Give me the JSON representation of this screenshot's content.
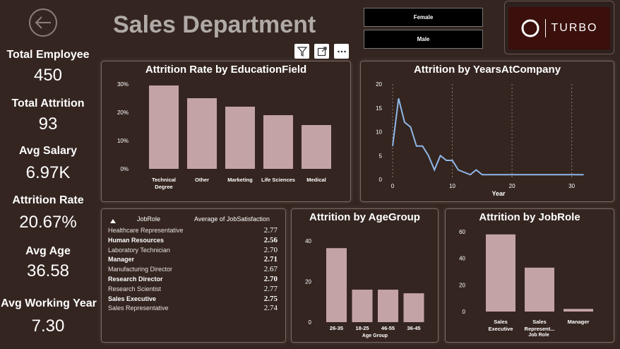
{
  "header": {
    "title": "Sales Department",
    "logo_text": "TURBO",
    "gender_slicer": [
      "Female",
      "Male"
    ]
  },
  "kpis": [
    {
      "label": "Total Employee",
      "value": "450"
    },
    {
      "label": "Total Attrition",
      "value": "93"
    },
    {
      "label": "Avg Salary",
      "value": "6.97K"
    },
    {
      "label": "Attrition Rate",
      "value": "20.67%"
    },
    {
      "label": "Avg Age",
      "value": "36.58"
    },
    {
      "label": "Avg Working Year",
      "value": "7.30"
    }
  ],
  "table": {
    "col_jobrole": "JobRole",
    "col_satisfaction": "Average of JobSatisfaction",
    "rows": [
      {
        "role": "Healthcare Representative",
        "value": "2.77",
        "bold": false
      },
      {
        "role": "Human Resources",
        "value": "2.56",
        "bold": true
      },
      {
        "role": "Laboratory Technician",
        "value": "2.70",
        "bold": false
      },
      {
        "role": "Manager",
        "value": "2.71",
        "bold": true
      },
      {
        "role": "Manufacturing Director",
        "value": "2.67",
        "bold": false
      },
      {
        "role": "Research Director",
        "value": "2.70",
        "bold": true
      },
      {
        "role": "Research Scientist",
        "value": "2.77",
        "bold": false
      },
      {
        "role": "Sales Executive",
        "value": "2.75",
        "bold": true
      },
      {
        "role": "Sales Representative",
        "value": "2.74",
        "bold": false
      }
    ]
  },
  "colors": {
    "bar": "#c4a3a5",
    "line": "#8fb8e8",
    "background": "#342520"
  },
  "chart_data": [
    {
      "id": "education",
      "type": "bar",
      "title": "Attrition Rate by EducationField",
      "categories": [
        "Technical Degree",
        "Other",
        "Marketing",
        "Life Sciences",
        "Medical"
      ],
      "category_lines": [
        [
          "Technical",
          "Degree"
        ],
        [
          "Other"
        ],
        [
          "Marketing"
        ],
        [
          "Life Sciences"
        ],
        [
          "Medical"
        ]
      ],
      "values": [
        29.5,
        25,
        22,
        19,
        15.5
      ],
      "yticks": [
        "0%",
        "10%",
        "20%",
        "30%"
      ],
      "ylim": [
        0,
        30
      ],
      "xlabel": ""
    },
    {
      "id": "years",
      "type": "line",
      "title": "Attrition by YearsAtCompany",
      "x": [
        0,
        1,
        2,
        3,
        4,
        5,
        6,
        7,
        8,
        9,
        10,
        11,
        13,
        14,
        15,
        16,
        17,
        18,
        19,
        20,
        21,
        22,
        23,
        24,
        25,
        26,
        27,
        28,
        29,
        30,
        31,
        32
      ],
      "y": [
        7,
        17,
        12,
        11,
        7,
        7,
        5,
        2,
        5,
        4,
        4,
        2,
        1,
        2,
        1,
        1,
        1,
        1,
        1,
        1,
        1,
        1,
        1,
        1,
        1,
        1,
        1,
        1,
        1,
        1,
        1,
        1
      ],
      "xticks": [
        0,
        10,
        20,
        30
      ],
      "yticks": [
        0,
        5,
        10,
        15,
        20
      ],
      "xlim": [
        0,
        33
      ],
      "ylim": [
        0,
        20
      ],
      "xlabel": "Year",
      "grid": "vertical dotted"
    },
    {
      "id": "age",
      "type": "bar",
      "title": "Attrition by AgeGroup",
      "categories": [
        "26-35",
        "18-25",
        "46-55",
        "36-45"
      ],
      "values": [
        41,
        18,
        18,
        16
      ],
      "yticks": [
        "0",
        "20",
        "40"
      ],
      "ylim": [
        0,
        45
      ],
      "xlabel": "Age Group"
    },
    {
      "id": "jobrole",
      "type": "bar",
      "title": "Attrition by JobRole",
      "categories": [
        "Sales Executive",
        "Sales Represent...",
        "Manager"
      ],
      "category_lines": [
        [
          "Sales",
          "Executive"
        ],
        [
          "Sales",
          "Represent..."
        ],
        [
          "Manager"
        ]
      ],
      "values": [
        58,
        33,
        2
      ],
      "yticks": [
        "0",
        "20",
        "40",
        "60"
      ],
      "ylim": [
        0,
        60
      ],
      "xlabel": "Job Role"
    }
  ]
}
